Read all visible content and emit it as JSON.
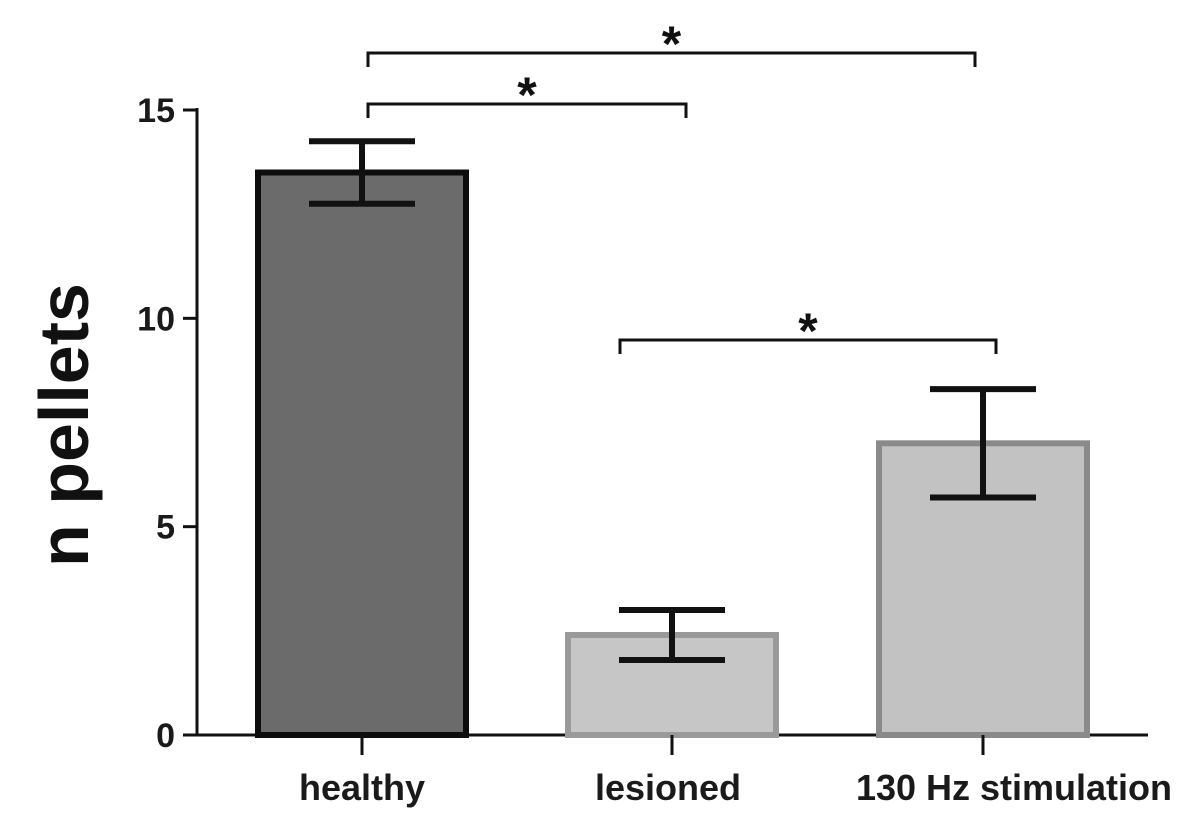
{
  "chart_data": {
    "type": "bar",
    "title": "",
    "xlabel": "",
    "ylabel": "n pellets",
    "ylim": [
      0,
      15
    ],
    "yticks": [
      0,
      5,
      10,
      15
    ],
    "grid": false,
    "categories": [
      "healthy",
      "lesioned",
      "130 Hz stimulation"
    ],
    "values": [
      13.5,
      2.4,
      7.0
    ],
    "errors": [
      0.75,
      0.6,
      1.3
    ],
    "bar_fill_colors": [
      "#6b6b6b",
      "#c6c6c6",
      "#c2c2c2"
    ],
    "bar_edge_colors": [
      "#0d0d0d",
      "#9a9a9a",
      "#8a8a8a"
    ],
    "significance": [
      {
        "from": "healthy",
        "to": "130 Hz stimulation",
        "label": "*"
      },
      {
        "from": "healthy",
        "to": "lesioned",
        "label": "*"
      },
      {
        "from": "lesioned",
        "to": "130 Hz stimulation",
        "label": "*"
      }
    ]
  }
}
